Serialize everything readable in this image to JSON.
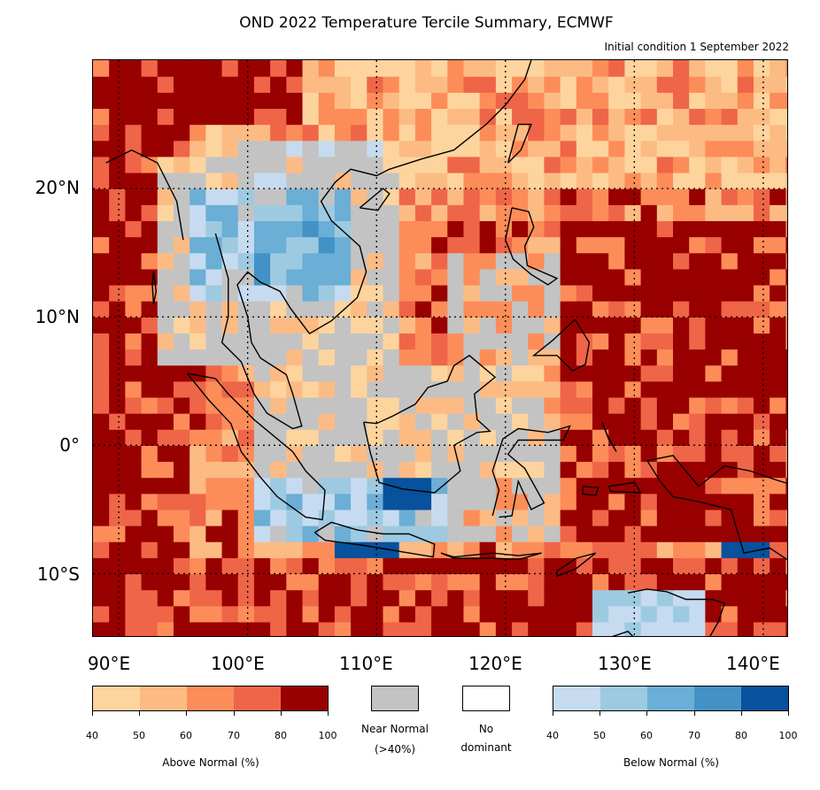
{
  "title": "OND 2022 Temperature Tercile Summary, ECMWF",
  "subtitle": "Initial condition 1 September 2022",
  "map": {
    "lat_labels": [
      "20°N",
      "10°N",
      "0°",
      "10°S"
    ],
    "lon_labels": [
      "90°E",
      "100°E",
      "110°E",
      "120°E",
      "130°E",
      "140°E"
    ],
    "lon_range": [
      88,
      142
    ],
    "lat_range": [
      -15,
      30
    ],
    "grid": "dotted"
  },
  "legend": {
    "above": {
      "label": "Above Normal (%)",
      "ticks": [
        "40",
        "50",
        "60",
        "70",
        "80",
        "100"
      ],
      "colors": [
        "#fdd49e",
        "#fdbb84",
        "#fc8d59",
        "#ef6548",
        "#990000"
      ]
    },
    "near_normal": {
      "label_1": "Near Normal",
      "label_2": "(>40%)",
      "color": "#c3c3c3"
    },
    "no_dominant": {
      "label_1": "No",
      "label_2": "dominant",
      "color": "#ffffff"
    },
    "below": {
      "label": "Below Normal (%)",
      "ticks": [
        "40",
        "50",
        "60",
        "70",
        "80",
        "100"
      ],
      "colors": [
        "#c6dbef",
        "#9ecae1",
        "#6baed6",
        "#4292c6",
        "#08519c"
      ]
    }
  }
}
